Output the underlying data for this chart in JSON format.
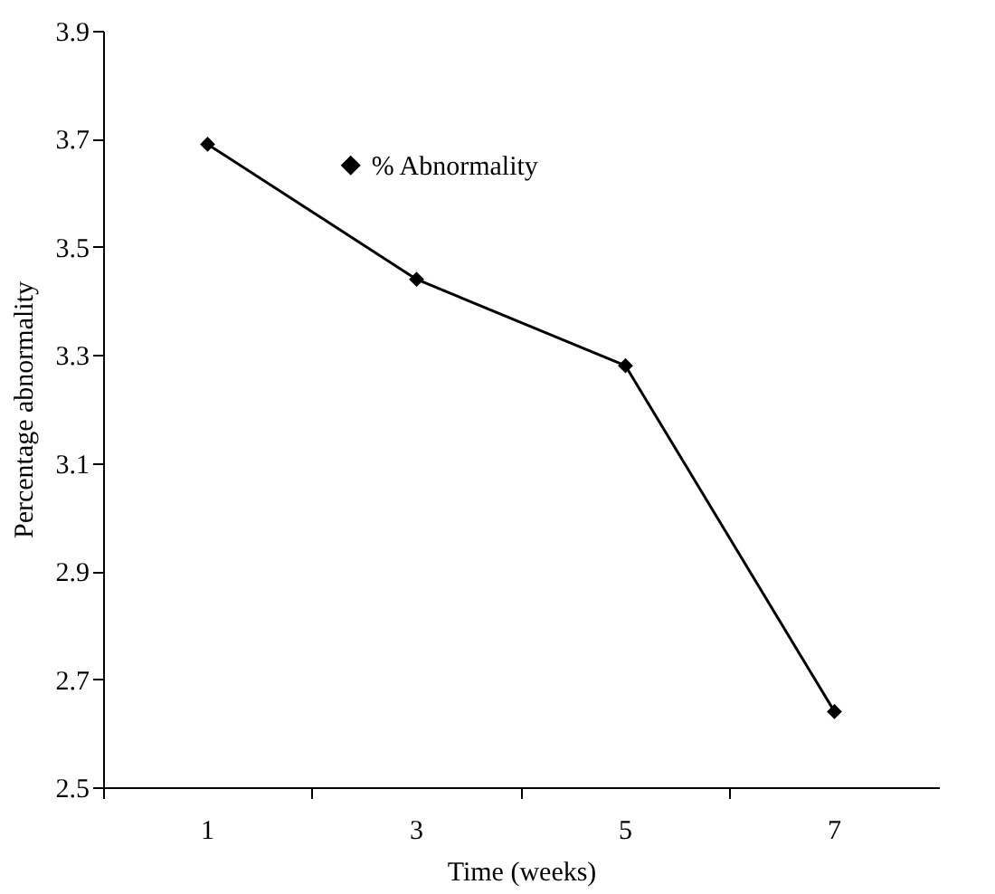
{
  "chart_data": {
    "type": "line",
    "xlabel": "Time (weeks)",
    "ylabel": "Percentage abnormality",
    "categories": [
      "1",
      "3",
      "5",
      "7"
    ],
    "series": [
      {
        "name": "% Abnormality",
        "color": "#000000",
        "values": [
          3.69,
          3.44,
          3.28,
          2.64
        ]
      }
    ],
    "ylim": [
      2.5,
      3.9
    ],
    "yticks": [
      2.5,
      2.7,
      2.9,
      3.1,
      3.3,
      3.5,
      3.7,
      3.9
    ],
    "grid": false,
    "legend": "top",
    "marker": "diamond",
    "line_style": "solid"
  }
}
